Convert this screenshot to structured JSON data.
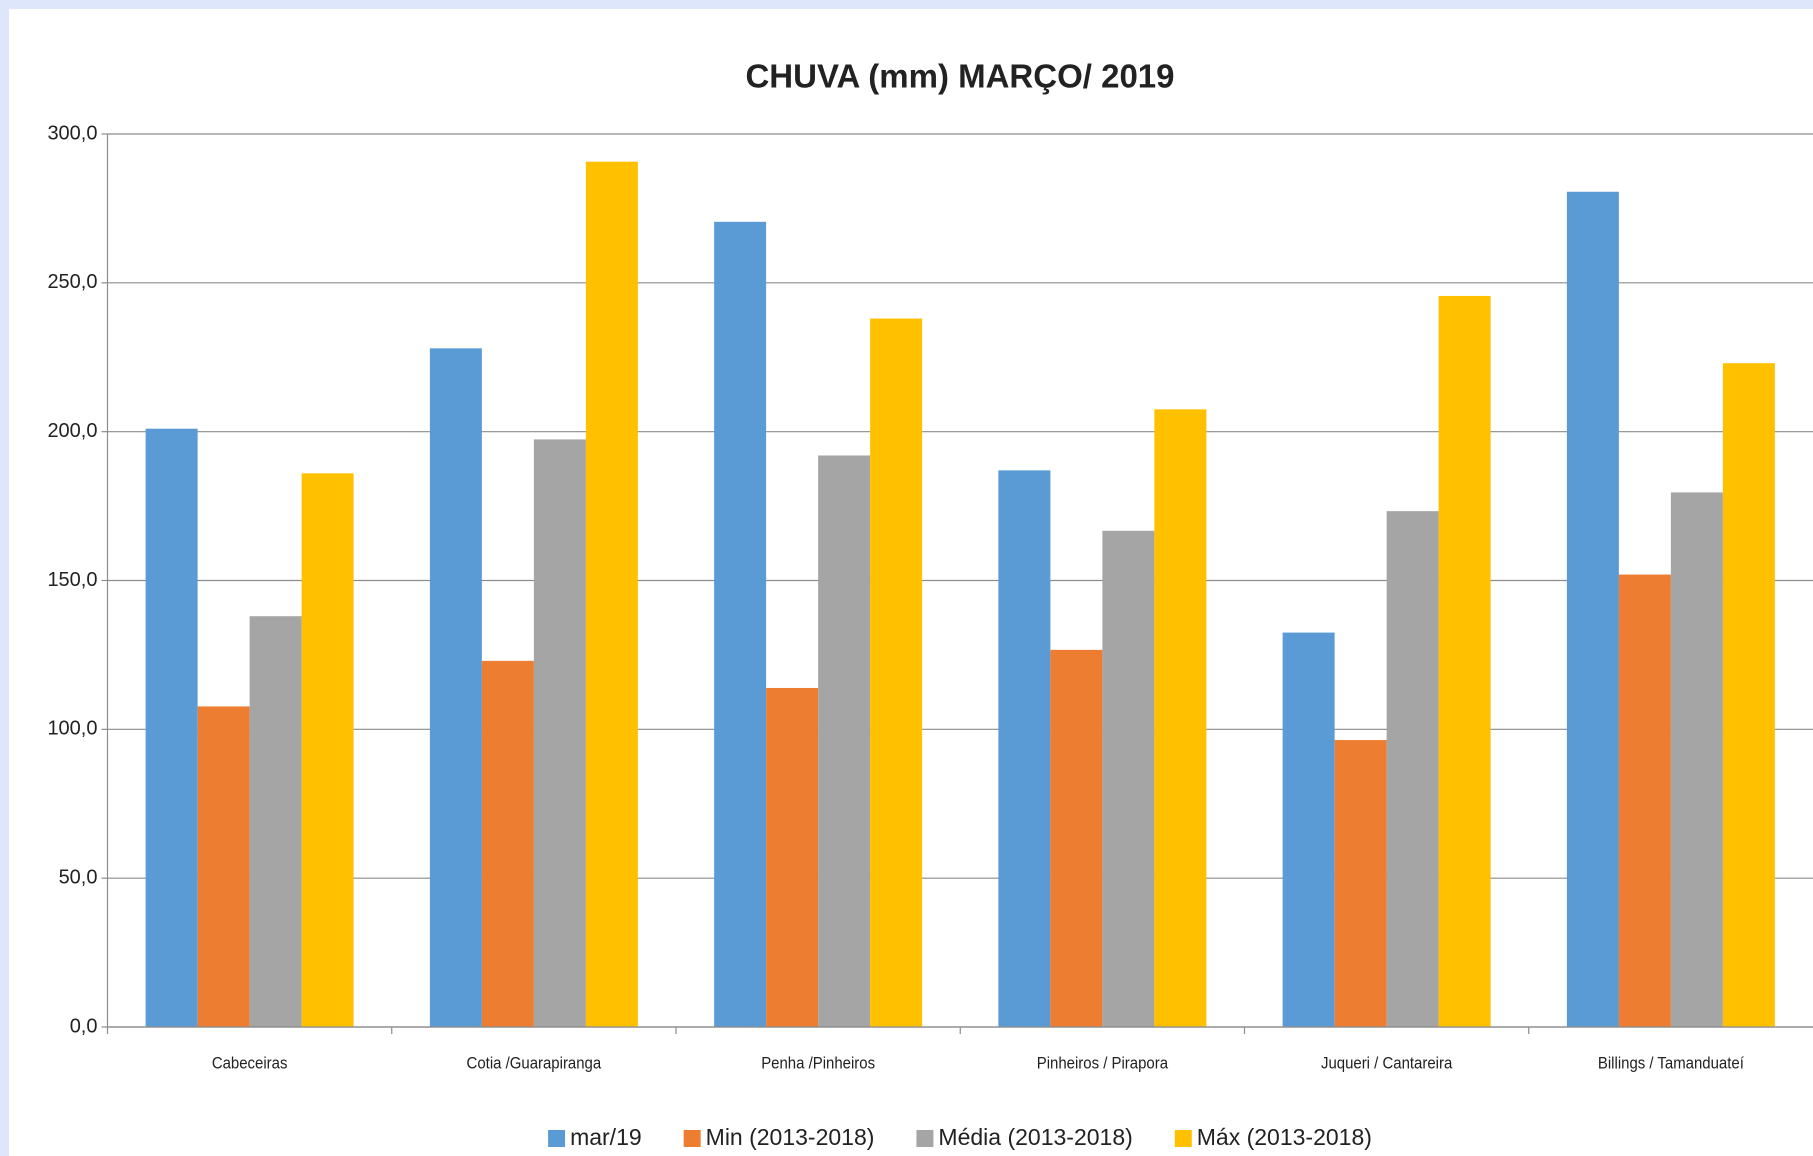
{
  "chart_data": {
    "type": "bar",
    "title": "CHUVA (mm) MARÇO/ 2019",
    "categories": [
      "Cabeceiras",
      "Cotia /Guarapiranga",
      "Penha /Pinheiros",
      "Pinheiros / Pirapora",
      "Juqueri / Cantareira",
      "Billings / Tamanduateí"
    ],
    "series": [
      {
        "name": "mar/19",
        "color": "#5b9bd5",
        "values": [
          201,
          228,
          270.5,
          187,
          132.5,
          280.6
        ]
      },
      {
        "name": "Min (2013-2018)",
        "color": "#ed7d31",
        "values": [
          107.7,
          123,
          113.9,
          126.7,
          96.4,
          152
        ]
      },
      {
        "name": "Média (2013-2018)",
        "color": "#a5a5a5",
        "values": [
          138,
          197.4,
          192,
          166.7,
          173.3,
          179.6
        ]
      },
      {
        "name": "Máx  (2013-2018)",
        "color": "#ffc000",
        "values": [
          186,
          290.7,
          238,
          207.5,
          245.6,
          223
        ]
      }
    ],
    "ylim": [
      0,
      300
    ],
    "yticks": [
      {
        "value": 0,
        "label": "0,0"
      },
      {
        "value": 50,
        "label": "50,0"
      },
      {
        "value": 100,
        "label": "100,0"
      },
      {
        "value": 150,
        "label": "150,0"
      },
      {
        "value": 200,
        "label": "200,0"
      },
      {
        "value": 250,
        "label": "250,0"
      },
      {
        "value": 300,
        "label": "300,0"
      }
    ],
    "grid": true,
    "legend": "bottom"
  }
}
